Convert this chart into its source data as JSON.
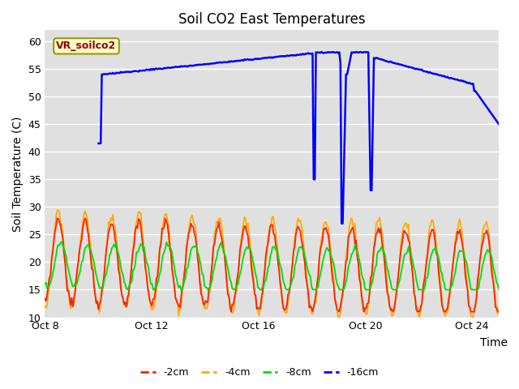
{
  "title": "Soil CO2 East Temperatures",
  "ylabel": "Soil Temperature (C)",
  "xlabel": "Time",
  "ylim": [
    10,
    62
  ],
  "yticks": [
    10,
    15,
    20,
    25,
    30,
    35,
    40,
    45,
    50,
    55,
    60
  ],
  "xtick_labels": [
    "Oct 8",
    "Oct 12",
    "Oct 16",
    "Oct 20",
    "Oct 24"
  ],
  "xtick_positions": [
    0,
    4,
    8,
    12,
    16
  ],
  "plot_bg_color": "#e0e0e0",
  "grid_color": "#ffffff",
  "colors": {
    "2cm": "#ff2200",
    "4cm": "#ffaa00",
    "8cm": "#00dd00",
    "16cm": "#0000ff"
  },
  "legend_labels": [
    "-2cm",
    "-4cm",
    "-8cm",
    "-16cm"
  ],
  "annotation_label": "VR_soilco2",
  "title_fontsize": 12,
  "axis_fontsize": 10,
  "tick_fontsize": 9,
  "legend_fontsize": 9,
  "n_days": 17,
  "samples_per_day": 24
}
